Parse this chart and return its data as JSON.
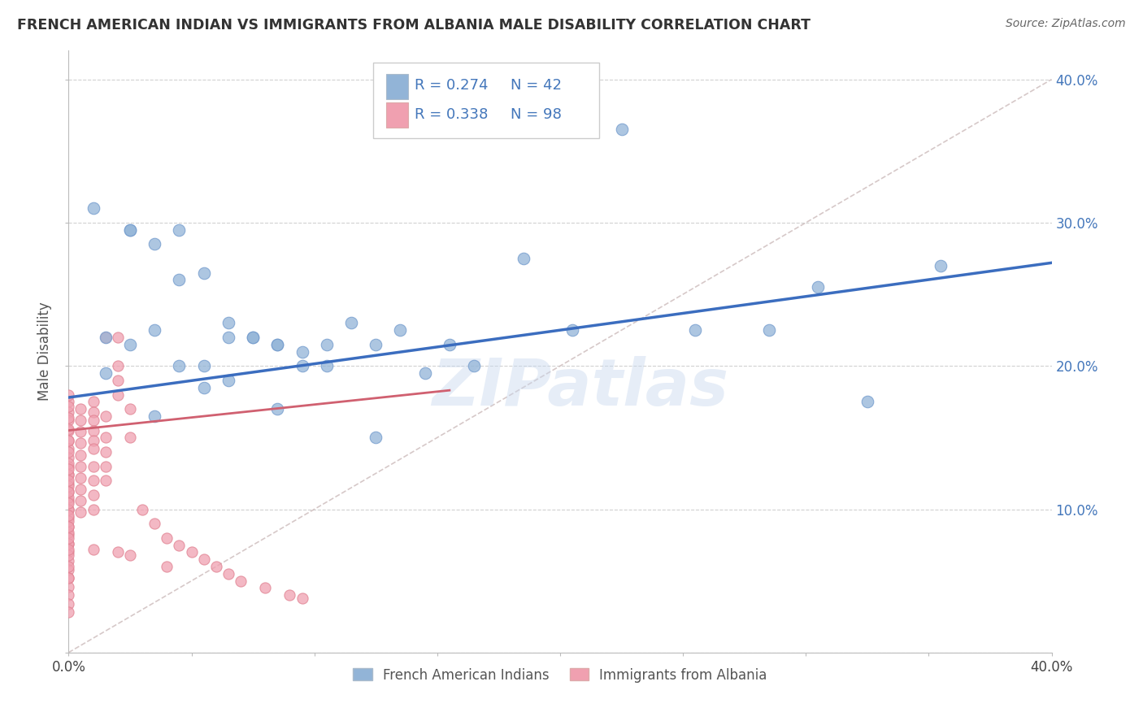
{
  "title": "FRENCH AMERICAN INDIAN VS IMMIGRANTS FROM ALBANIA MALE DISABILITY CORRELATION CHART",
  "source": "Source: ZipAtlas.com",
  "ylabel": "Male Disability",
  "xlim": [
    0.0,
    0.4
  ],
  "ylim": [
    0.0,
    0.42
  ],
  "background_color": "#ffffff",
  "grid_color": "#cccccc",
  "watermark": "ZIPatlas",
  "legend_r1": "R = 0.274",
  "legend_n1": "N = 42",
  "legend_r2": "R = 0.338",
  "legend_n2": "N = 98",
  "blue_color": "#92b4d7",
  "pink_color": "#f0a0b0",
  "blue_line_color": "#3b6dbf",
  "pink_line_color": "#d06070",
  "diag_line_color": "#ccaaaa",
  "text_color": "#4477bb",
  "legend_label1": "French American Indians",
  "legend_label2": "Immigrants from Albania",
  "blue_scatter_x": [
    0.01,
    0.025,
    0.035,
    0.045,
    0.055,
    0.065,
    0.075,
    0.085,
    0.095,
    0.105,
    0.115,
    0.125,
    0.135,
    0.145,
    0.015,
    0.025,
    0.035,
    0.045,
    0.055,
    0.065,
    0.075,
    0.085,
    0.095,
    0.105,
    0.015,
    0.025,
    0.045,
    0.155,
    0.205,
    0.255,
    0.305,
    0.355,
    0.225,
    0.185,
    0.055,
    0.035,
    0.065,
    0.165,
    0.085,
    0.125,
    0.285,
    0.325
  ],
  "blue_scatter_y": [
    0.31,
    0.295,
    0.285,
    0.26,
    0.265,
    0.23,
    0.22,
    0.215,
    0.2,
    0.215,
    0.23,
    0.215,
    0.225,
    0.195,
    0.22,
    0.215,
    0.225,
    0.2,
    0.2,
    0.22,
    0.22,
    0.215,
    0.21,
    0.2,
    0.195,
    0.295,
    0.295,
    0.215,
    0.225,
    0.225,
    0.255,
    0.27,
    0.365,
    0.275,
    0.185,
    0.165,
    0.19,
    0.2,
    0.17,
    0.15,
    0.225,
    0.175
  ],
  "pink_scatter_x": [
    0.0,
    0.0,
    0.0,
    0.0,
    0.0,
    0.0,
    0.0,
    0.0,
    0.0,
    0.0,
    0.0,
    0.0,
    0.0,
    0.0,
    0.0,
    0.0,
    0.0,
    0.0,
    0.0,
    0.0,
    0.0,
    0.0,
    0.0,
    0.0,
    0.0,
    0.0,
    0.0,
    0.0,
    0.0,
    0.0,
    0.0,
    0.0,
    0.0,
    0.0,
    0.0,
    0.0,
    0.0,
    0.0,
    0.0,
    0.0,
    0.0,
    0.0,
    0.0,
    0.0,
    0.0,
    0.0,
    0.0,
    0.0,
    0.0,
    0.0,
    0.005,
    0.005,
    0.005,
    0.005,
    0.005,
    0.005,
    0.005,
    0.005,
    0.005,
    0.005,
    0.01,
    0.01,
    0.01,
    0.01,
    0.01,
    0.01,
    0.01,
    0.01,
    0.01,
    0.01,
    0.015,
    0.015,
    0.015,
    0.015,
    0.015,
    0.02,
    0.02,
    0.02,
    0.02,
    0.025,
    0.025,
    0.025,
    0.03,
    0.035,
    0.04,
    0.045,
    0.05,
    0.055,
    0.06,
    0.065,
    0.07,
    0.08,
    0.09,
    0.095,
    0.01,
    0.015,
    0.02,
    0.04
  ],
  "pink_scatter_y": [
    0.175,
    0.168,
    0.162,
    0.155,
    0.148,
    0.142,
    0.136,
    0.13,
    0.124,
    0.118,
    0.112,
    0.106,
    0.1,
    0.094,
    0.088,
    0.082,
    0.076,
    0.07,
    0.064,
    0.058,
    0.052,
    0.046,
    0.04,
    0.034,
    0.028,
    0.052,
    0.06,
    0.068,
    0.076,
    0.084,
    0.092,
    0.1,
    0.108,
    0.116,
    0.124,
    0.132,
    0.14,
    0.148,
    0.156,
    0.164,
    0.172,
    0.18,
    0.072,
    0.08,
    0.088,
    0.096,
    0.104,
    0.112,
    0.12,
    0.128,
    0.17,
    0.162,
    0.154,
    0.146,
    0.138,
    0.13,
    0.122,
    0.114,
    0.106,
    0.098,
    0.175,
    0.168,
    0.162,
    0.155,
    0.148,
    0.142,
    0.13,
    0.12,
    0.11,
    0.1,
    0.165,
    0.15,
    0.14,
    0.13,
    0.12,
    0.2,
    0.19,
    0.18,
    0.07,
    0.17,
    0.15,
    0.068,
    0.1,
    0.09,
    0.08,
    0.075,
    0.07,
    0.065,
    0.06,
    0.055,
    0.05,
    0.045,
    0.04,
    0.038,
    0.072,
    0.22,
    0.22,
    0.06
  ],
  "blue_line_start_y": 0.178,
  "blue_line_end_y": 0.272,
  "pink_line_start_y": 0.155,
  "pink_line_end_y": 0.183
}
